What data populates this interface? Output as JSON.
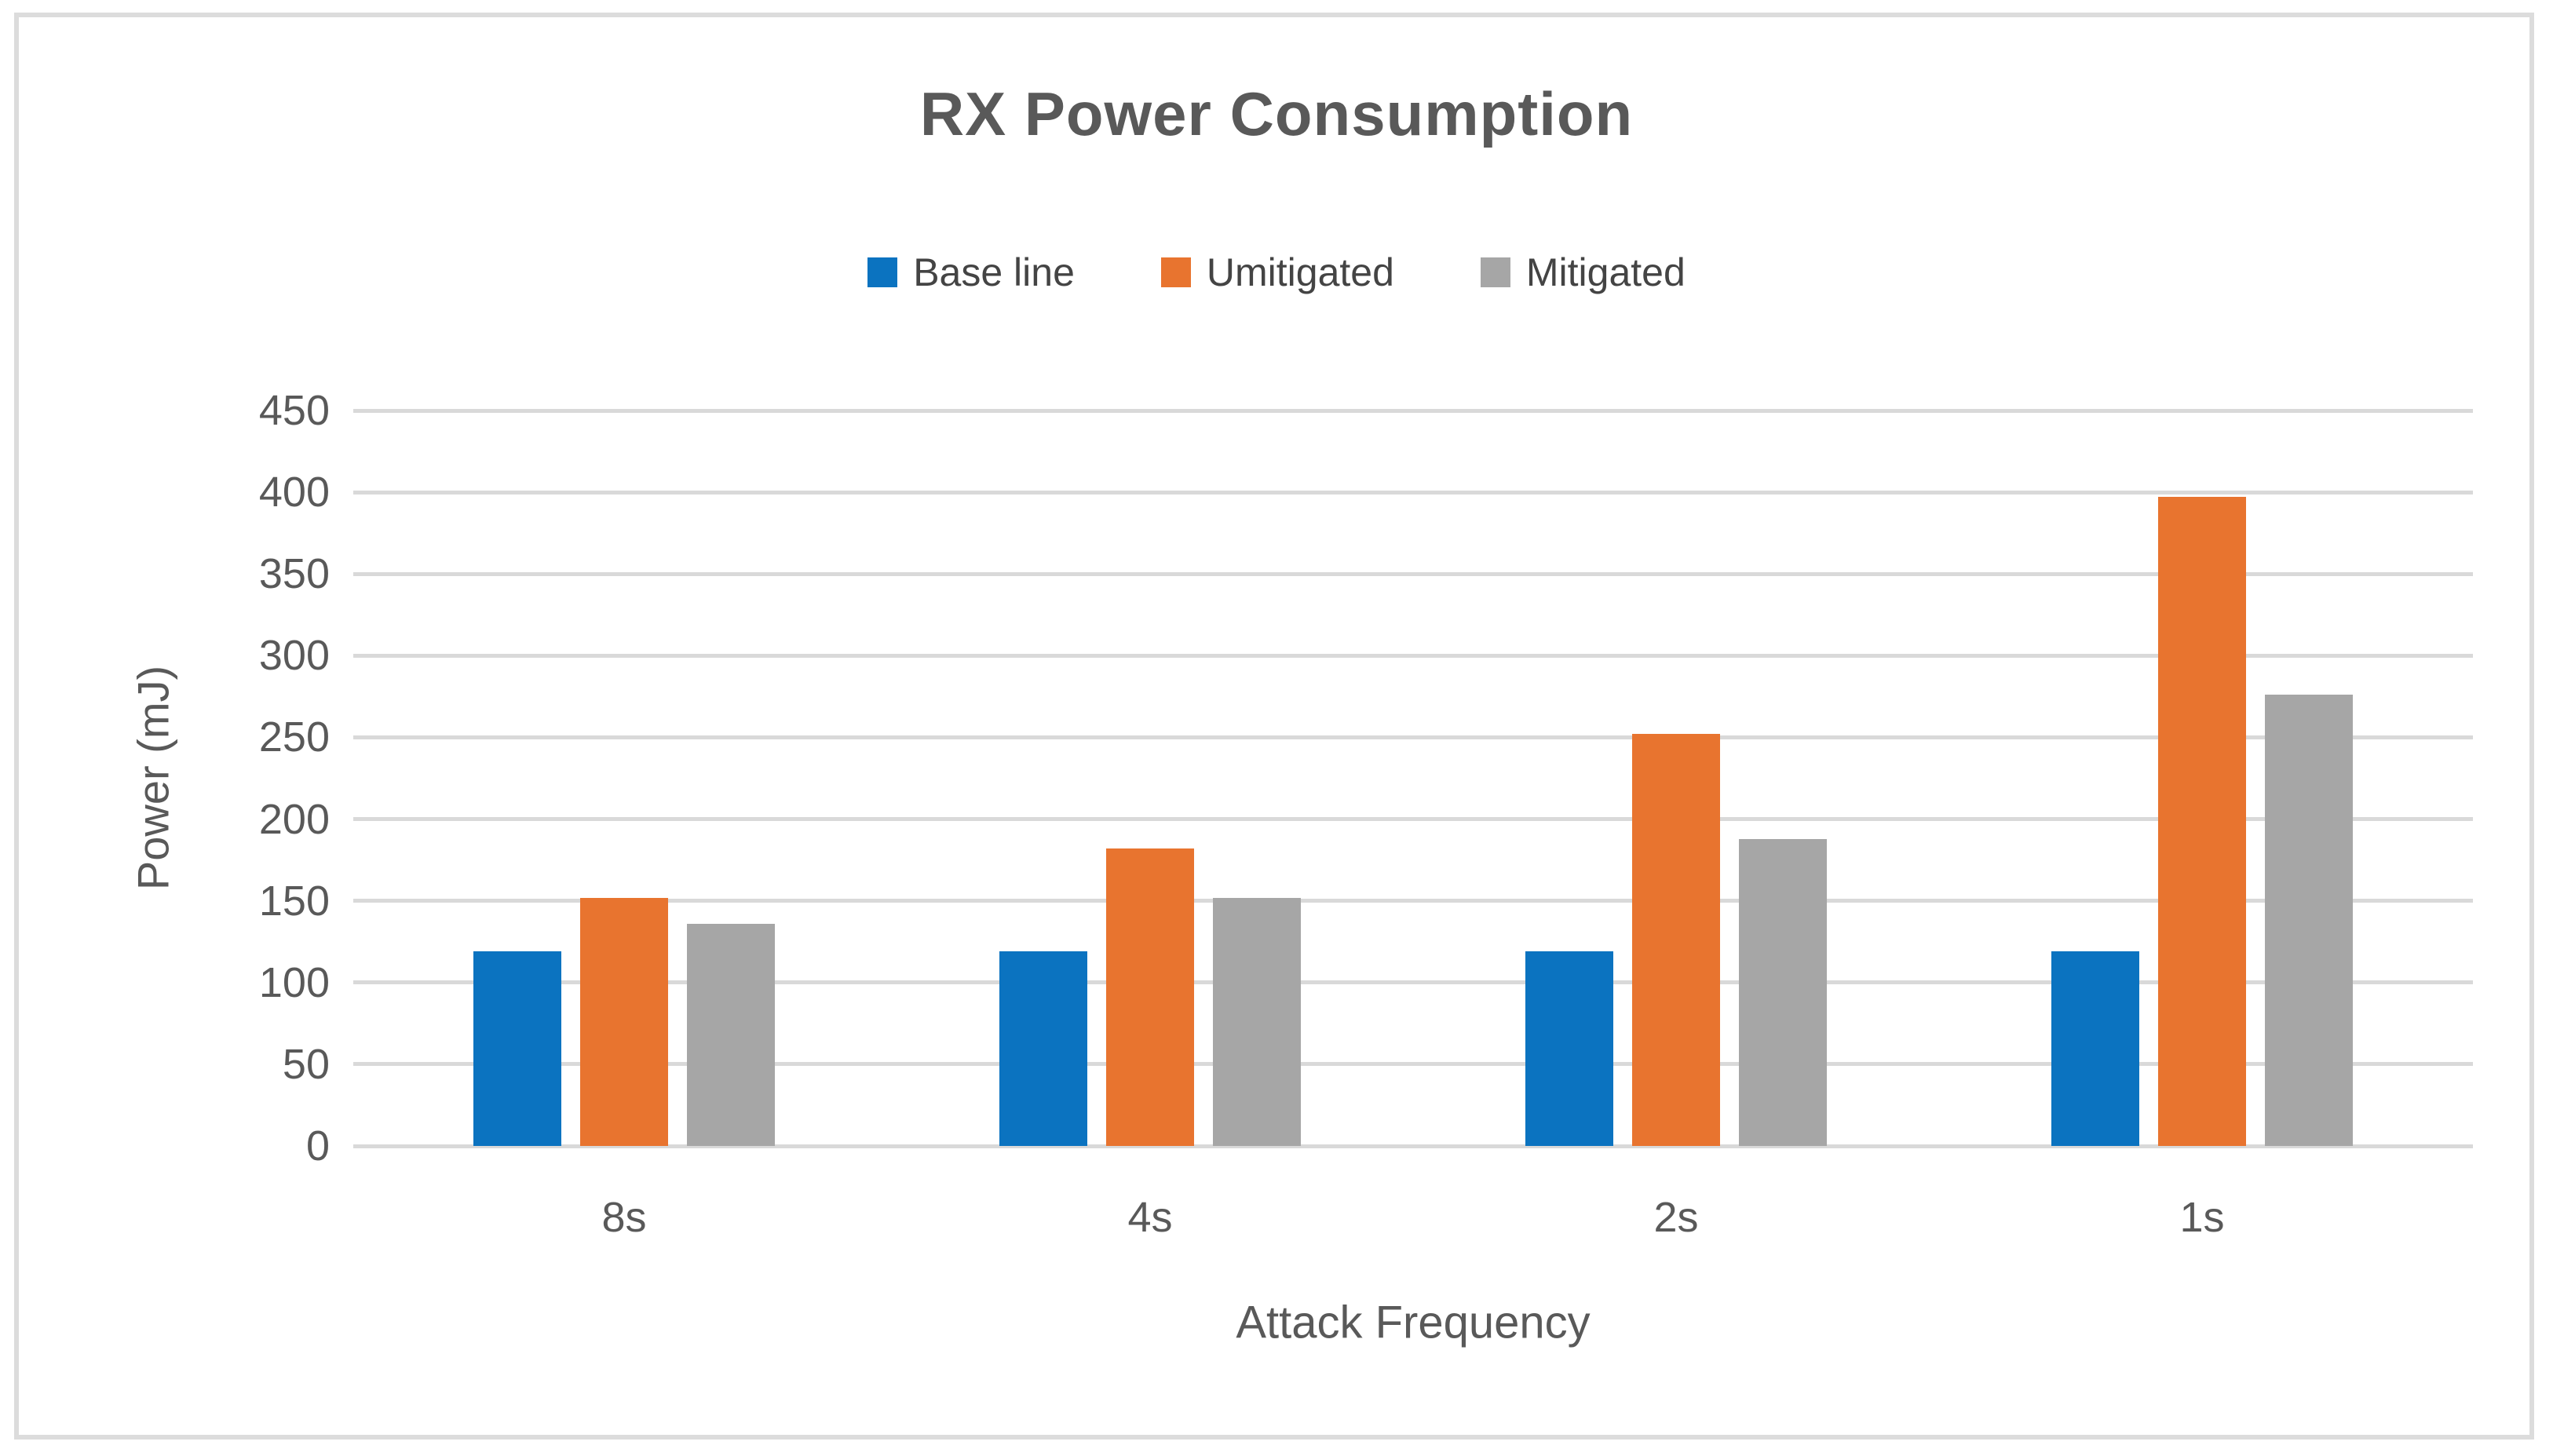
{
  "frame": {
    "border_color": "#dcdcdc",
    "background": "#ffffff"
  },
  "chart_data": {
    "type": "bar",
    "title": "RX Power Consumption",
    "title_color": "#595959",
    "categories": [
      "8s",
      "4s",
      "2s",
      "1s"
    ],
    "series": [
      {
        "name": "Base line",
        "color": "#0b73c0",
        "values": [
          119,
          119,
          119,
          119
        ]
      },
      {
        "name": "Umitigated",
        "color": "#e8742f",
        "values": [
          152,
          182,
          252,
          397
        ]
      },
      {
        "name": "Mitigated",
        "color": "#a6a6a6",
        "values": [
          136,
          152,
          188,
          276
        ]
      }
    ],
    "xlabel": "Attack Frequency",
    "ylabel": "Power (mJ)",
    "ylim": [
      0,
      450
    ],
    "yticks": [
      0,
      50,
      100,
      150,
      200,
      250,
      300,
      350,
      400,
      450
    ],
    "grid": true,
    "gridline_color": "#d9d9d9",
    "axis_text_color": "#595959",
    "legend_position": "top"
  }
}
